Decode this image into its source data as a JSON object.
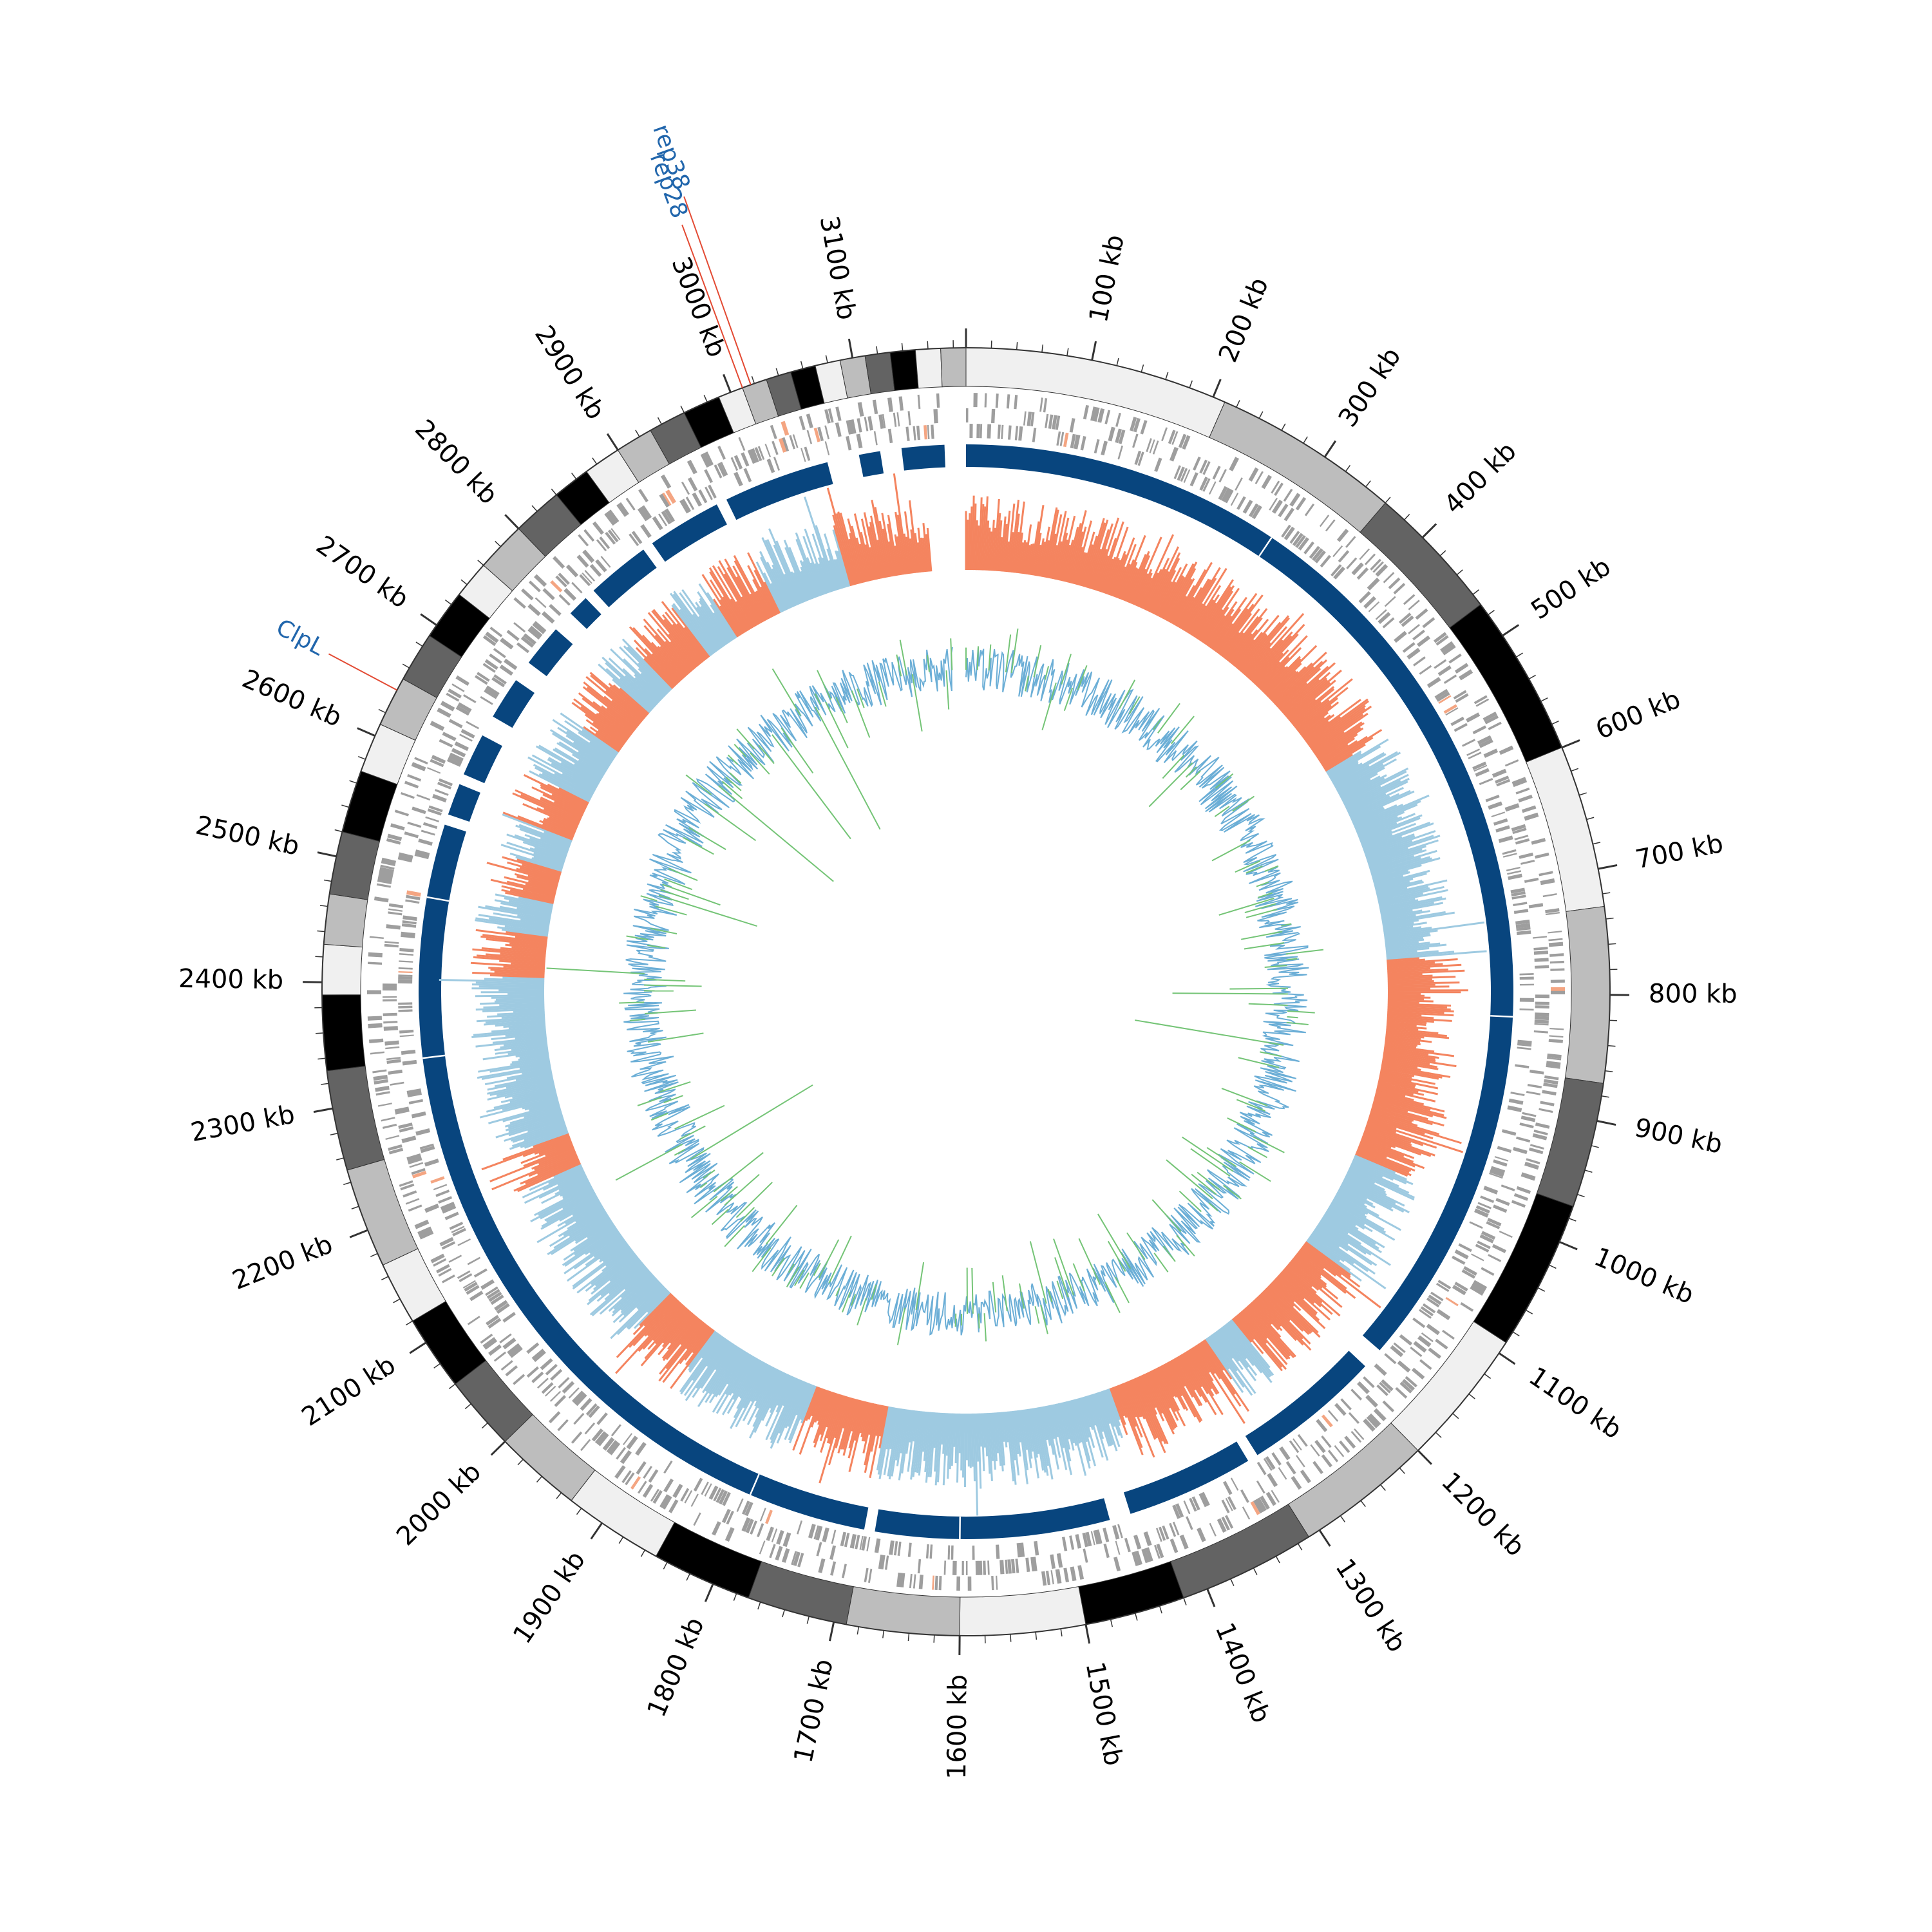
{
  "genome": {
    "length_kb": 3190,
    "start_offset_deg": 0
  },
  "scale": {
    "unit": "kb",
    "labels": [
      "100 kb",
      "200 kb",
      "300 kb",
      "400 kb",
      "500 kb",
      "600 kb",
      "700 kb",
      "800 kb",
      "900 kb",
      "1000 kb",
      "1100 kb",
      "1200 kb",
      "1300 kb",
      "1400 kb",
      "1500 kb",
      "1600 kb",
      "1700 kb",
      "1800 kb",
      "1900 kb",
      "2000 kb",
      "2100 kb",
      "2200 kb",
      "2300 kb",
      "2400 kb",
      "2500 kb",
      "2600 kb",
      "2700 kb",
      "2800 kb",
      "2900 kb",
      "3000 kb",
      "3100 kb"
    ],
    "label_positions_kb": [
      100,
      200,
      300,
      400,
      500,
      600,
      700,
      800,
      900,
      1000,
      1100,
      1200,
      1300,
      1400,
      1500,
      1600,
      1700,
      1800,
      1900,
      2000,
      2100,
      2200,
      2300,
      2400,
      2500,
      2600,
      2700,
      2800,
      2900,
      3000,
      3100
    ]
  },
  "contig_track": {
    "colors": [
      "#f0f0f0",
      "#bdbdbd",
      "#636363",
      "#000000",
      "#f0f0f0",
      "#bdbdbd",
      "#636363",
      "#000000"
    ],
    "boundaries_kb": [
      0,
      210,
      360,
      470,
      600,
      730,
      870,
      970,
      1090,
      1200,
      1310,
      1420,
      1500,
      1600,
      1690,
      1770,
      1850,
      1930,
      2000,
      2060,
      2120,
      2170,
      2250,
      2330,
      2390,
      2430,
      2470,
      2520,
      2570,
      2610,
      2650,
      2690,
      2730,
      2760,
      2800,
      2840,
      2870,
      2900,
      2930,
      2960,
      2990,
      3010,
      3030,
      3050,
      3070,
      3090,
      3110,
      3130,
      3150,
      3170,
      3190
    ]
  },
  "gene_track": {
    "color": "#9e9e9e",
    "highlight_color": "#f4a582"
  },
  "alignment_track": {
    "color": "#08457e",
    "light_color": "#2166ac",
    "gaps_kb": [
      [
        2550,
        2560
      ],
      [
        2590,
        2600
      ],
      [
        2640,
        2660
      ],
      [
        2700,
        2720
      ],
      [
        2760,
        2780
      ],
      [
        2800,
        2810
      ],
      [
        2870,
        2880
      ],
      [
        2950,
        2960
      ],
      [
        3060,
        3090
      ],
      [
        3110,
        3130
      ],
      [
        3170,
        3190
      ],
      [
        1160,
        1180
      ],
      [
        1440,
        1460
      ],
      [
        1680,
        1690
      ],
      [
        1310,
        1320
      ]
    ]
  },
  "gc_skew_track": {
    "positive_color": "#f4845f",
    "negative_color": "#9ecae1",
    "segments_kb": [
      [
        0,
        520,
        "pos"
      ],
      [
        520,
        760,
        "neg"
      ],
      [
        760,
        1000,
        "pos"
      ],
      [
        1000,
        1120,
        "neg"
      ],
      [
        1120,
        1250,
        "pos"
      ],
      [
        1250,
        1290,
        "neg"
      ],
      [
        1290,
        1420,
        "pos"
      ],
      [
        1420,
        1690,
        "neg"
      ],
      [
        1690,
        1780,
        "pos"
      ],
      [
        1780,
        1920,
        "neg"
      ],
      [
        1920,
        1990,
        "pos"
      ],
      [
        1990,
        2180,
        "neg"
      ],
      [
        2180,
        2220,
        "pos"
      ],
      [
        2220,
        2410,
        "neg"
      ],
      [
        2410,
        2460,
        "pos"
      ],
      [
        2460,
        2500,
        "neg"
      ],
      [
        2500,
        2540,
        "pos"
      ],
      [
        2540,
        2580,
        "neg"
      ],
      [
        2580,
        2630,
        "pos"
      ],
      [
        2630,
        2700,
        "neg"
      ],
      [
        2700,
        2760,
        "pos"
      ],
      [
        2760,
        2800,
        "neg"
      ],
      [
        2800,
        2860,
        "pos"
      ],
      [
        2860,
        2900,
        "neg"
      ],
      [
        2900,
        2960,
        "pos"
      ],
      [
        2960,
        3050,
        "neg"
      ],
      [
        3050,
        3150,
        "pos"
      ]
    ]
  },
  "gc_content_track": {
    "line_color": "#6baed6",
    "spike_color": "#74c476"
  },
  "annotations": [
    {
      "label": "rep38",
      "position_kb": 3017,
      "color": "#2166ac",
      "line_color": "#e34a33"
    },
    {
      "label": "rep28",
      "position_kb": 3010,
      "color": "#2166ac",
      "line_color": "#e34a33"
    },
    {
      "label": "ClpL",
      "position_kb": 2640,
      "color": "#2166ac",
      "line_color": "#e34a33"
    }
  ]
}
